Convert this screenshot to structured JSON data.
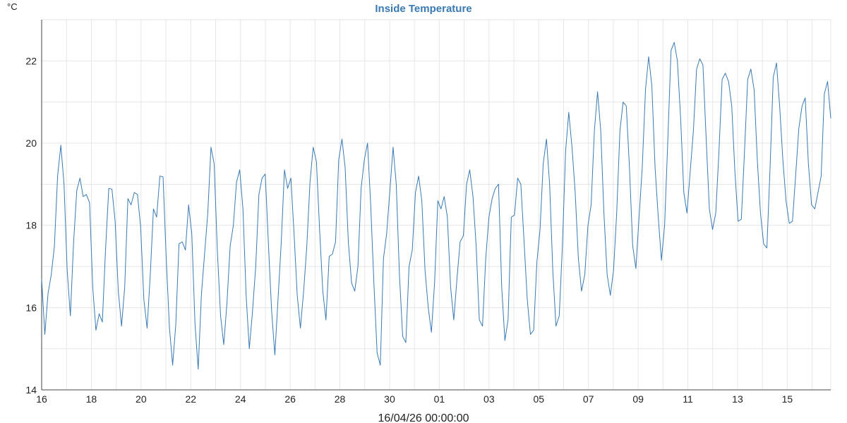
{
  "chart_data": {
    "type": "line",
    "title": "Inside Temperature",
    "ylabel": "°C",
    "xlabel": "16/04/26 00:00:00",
    "ylim": [
      14,
      23
    ],
    "yticks": [
      14,
      16,
      18,
      20,
      22
    ],
    "xlim": [
      0,
      31.75
    ],
    "x_tick_days": [
      0,
      2,
      4,
      6,
      8,
      10,
      12,
      14,
      16,
      18,
      20,
      22,
      24,
      26,
      28,
      30
    ],
    "x_tick_labels": [
      "16",
      "18",
      "20",
      "22",
      "24",
      "26",
      "28",
      "30",
      "01",
      "03",
      "05",
      "07",
      "09",
      "11",
      "13",
      "15"
    ],
    "grid": true,
    "colors": {
      "series": "#3a7ab3",
      "title": "#3a7ab3",
      "grid": "#e6e6e6"
    },
    "series": [
      {
        "values": [
          16.7,
          15.35,
          16.35,
          16.8,
          17.5,
          19.2,
          19.95,
          19.0,
          16.9,
          15.8,
          17.6,
          18.85,
          19.15,
          18.7,
          18.75,
          18.55,
          16.5,
          15.45,
          15.85,
          15.65,
          17.4,
          18.9,
          18.88,
          18.1,
          16.4,
          15.55,
          16.5,
          18.65,
          18.5,
          18.8,
          18.75,
          17.95,
          16.2,
          15.5,
          16.8,
          18.4,
          18.2,
          19.2,
          19.18,
          17.2,
          15.5,
          14.6,
          15.6,
          17.55,
          17.6,
          17.4,
          18.5,
          17.8,
          15.6,
          14.5,
          16.3,
          17.3,
          18.3,
          19.9,
          19.5,
          17.4,
          15.8,
          15.1,
          16.1,
          17.5,
          18.0,
          19.05,
          19.35,
          18.4,
          16.3,
          15.0,
          15.9,
          17.0,
          18.75,
          19.15,
          19.25,
          17.5,
          15.9,
          14.85,
          16.2,
          17.6,
          19.35,
          18.9,
          19.15,
          17.8,
          16.3,
          15.5,
          16.4,
          17.5,
          19.05,
          19.9,
          19.55,
          17.9,
          16.4,
          15.7,
          17.25,
          17.3,
          17.6,
          19.6,
          20.1,
          19.4,
          17.6,
          16.6,
          16.4,
          17.0,
          18.9,
          19.6,
          20.0,
          18.5,
          16.6,
          14.9,
          14.6,
          17.2,
          17.8,
          18.85,
          19.9,
          19.0,
          16.8,
          15.3,
          15.15,
          17.0,
          17.4,
          18.8,
          19.2,
          18.6,
          16.9,
          16.0,
          15.4,
          16.6,
          18.6,
          18.4,
          18.7,
          18.2,
          16.5,
          15.7,
          16.7,
          17.6,
          17.75,
          19.0,
          19.35,
          18.7,
          17.5,
          15.7,
          15.55,
          17.2,
          18.2,
          18.65,
          18.9,
          19.0,
          16.5,
          15.2,
          15.7,
          18.2,
          18.25,
          19.15,
          19.0,
          17.6,
          16.2,
          15.35,
          15.45,
          17.1,
          17.9,
          19.5,
          20.1,
          19.0,
          16.9,
          15.55,
          15.8,
          17.5,
          19.8,
          20.75,
          19.9,
          18.8,
          17.2,
          16.4,
          16.8,
          18.0,
          18.5,
          20.3,
          21.25,
          20.3,
          18.3,
          16.8,
          16.3,
          16.9,
          18.3,
          20.3,
          21.0,
          20.9,
          19.4,
          17.5,
          16.95,
          18.2,
          19.4,
          21.3,
          22.1,
          21.4,
          19.4,
          18.2,
          17.15,
          18.0,
          20.1,
          22.25,
          22.45,
          22.0,
          20.6,
          18.8,
          18.3,
          19.3,
          20.3,
          21.8,
          22.05,
          21.9,
          20.1,
          18.4,
          17.9,
          18.3,
          19.8,
          21.55,
          21.7,
          21.5,
          20.9,
          19.3,
          18.1,
          18.15,
          19.8,
          21.55,
          21.8,
          21.3,
          19.6,
          18.3,
          17.55,
          17.45,
          19.4,
          21.6,
          21.95,
          20.9,
          19.6,
          18.6,
          18.05,
          18.1,
          19.2,
          20.35,
          20.9,
          21.1,
          19.5,
          18.5,
          18.4,
          18.8,
          19.2,
          21.2,
          21.5,
          20.6
        ]
      }
    ]
  }
}
